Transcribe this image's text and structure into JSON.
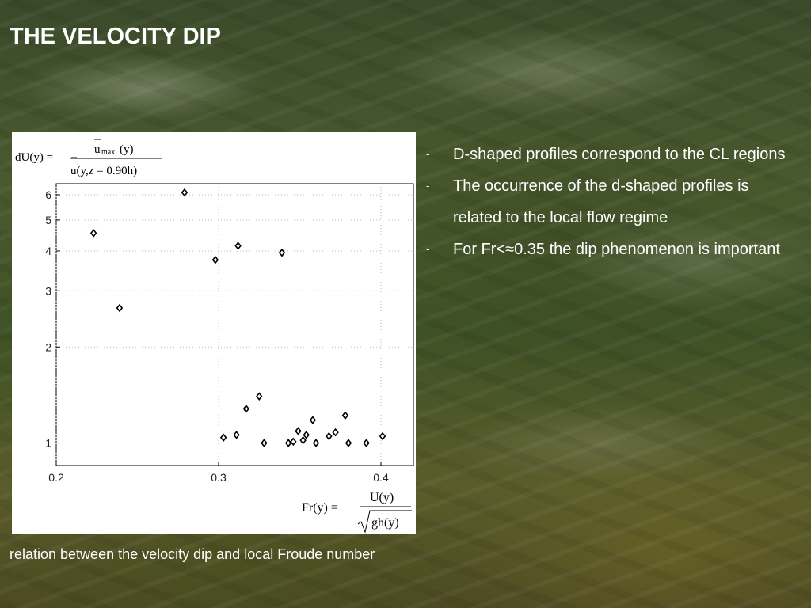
{
  "slide": {
    "title": "THE VELOCITY DIP",
    "bullets": [
      {
        "marker": "-",
        "text": "D-shaped profiles correspond to the CL regions"
      },
      {
        "marker": "-",
        "text": "The occurrence of the d-shaped profiles is related to the local flow regime"
      },
      {
        "marker": "-",
        "text": "For Fr<≈0.35 the dip phenomenon is important"
      }
    ],
    "caption": "relation between the velocity dip and local Froude number"
  },
  "formulas": {
    "dip": {
      "lhs": "dU(y) =",
      "numerator": "u",
      "numerator_sub": "max",
      "numerator_arg": "(y)",
      "denominator": "u(y,z = 0.90h)"
    },
    "froude": {
      "lhs": "Fr(y) =",
      "numerator": "U(y)",
      "denominator": "gh(y)"
    }
  },
  "chart_data": {
    "type": "scatter",
    "xlim": [
      0.2,
      0.42
    ],
    "ylim": [
      0.85,
      6.5
    ],
    "yscale": "log",
    "grid": true,
    "marker": "diamond",
    "x_ticks": [
      0.2,
      0.3,
      0.4
    ],
    "x_tick_labels": [
      "0.2",
      "0.3",
      "0.4"
    ],
    "y_ticks": [
      1,
      2,
      3,
      4,
      5,
      6
    ],
    "y_tick_labels": [
      "1",
      "2",
      "3",
      "4",
      "5",
      "6"
    ],
    "points": [
      {
        "x": 0.223,
        "y": 4.55
      },
      {
        "x": 0.239,
        "y": 2.65
      },
      {
        "x": 0.279,
        "y": 6.1
      },
      {
        "x": 0.298,
        "y": 3.75
      },
      {
        "x": 0.303,
        "y": 1.04
      },
      {
        "x": 0.311,
        "y": 1.06
      },
      {
        "x": 0.312,
        "y": 4.15
      },
      {
        "x": 0.317,
        "y": 1.28
      },
      {
        "x": 0.325,
        "y": 1.4
      },
      {
        "x": 0.328,
        "y": 1.0
      },
      {
        "x": 0.339,
        "y": 3.95
      },
      {
        "x": 0.343,
        "y": 1.0
      },
      {
        "x": 0.346,
        "y": 1.01
      },
      {
        "x": 0.349,
        "y": 1.09
      },
      {
        "x": 0.352,
        "y": 1.02
      },
      {
        "x": 0.354,
        "y": 1.06
      },
      {
        "x": 0.358,
        "y": 1.18
      },
      {
        "x": 0.36,
        "y": 1.0
      },
      {
        "x": 0.368,
        "y": 1.05
      },
      {
        "x": 0.372,
        "y": 1.08
      },
      {
        "x": 0.378,
        "y": 1.22
      },
      {
        "x": 0.38,
        "y": 1.0
      },
      {
        "x": 0.391,
        "y": 1.0
      },
      {
        "x": 0.401,
        "y": 1.05
      }
    ]
  }
}
